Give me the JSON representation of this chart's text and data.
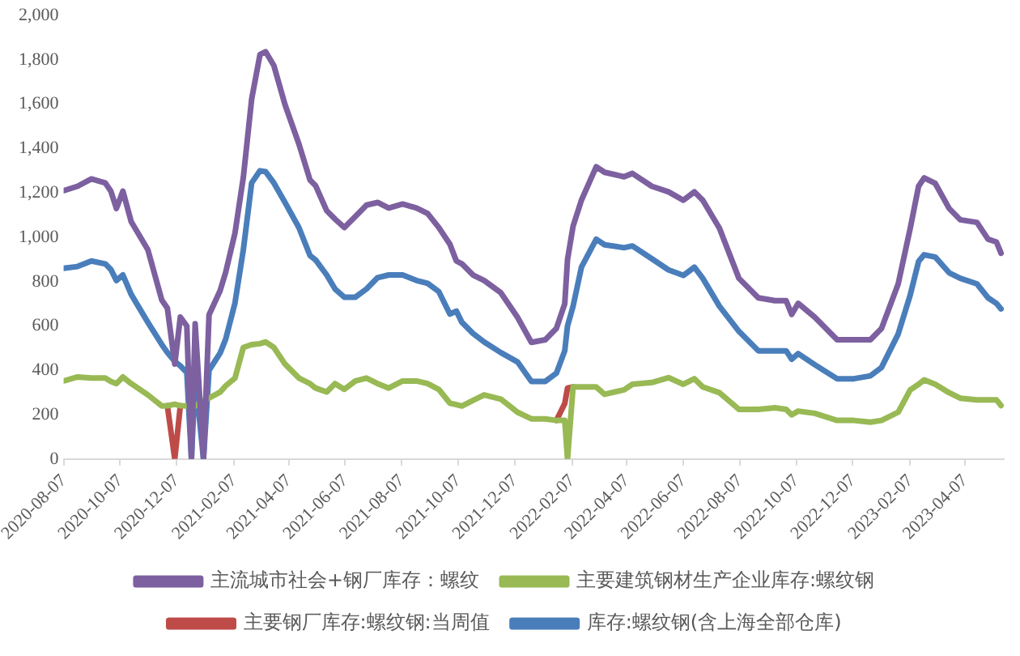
{
  "chart_data": {
    "type": "line",
    "x": [
      "2020-08-07",
      "2020-08-22",
      "2020-09-06",
      "2020-09-21",
      "2020-09-27",
      "2020-10-03",
      "2020-10-10",
      "2020-10-19",
      "2020-11-06",
      "2020-11-21",
      "2020-11-27",
      "2020-12-05",
      "2020-12-11",
      "2020-12-18",
      "2020-12-23",
      "2020-12-27",
      "2021-01-05",
      "2021-01-11",
      "2021-01-23",
      "2021-01-29",
      "2021-02-08",
      "2021-02-17",
      "2021-02-26",
      "2021-03-07",
      "2021-03-13",
      "2021-03-22",
      "2021-04-03",
      "2021-04-18",
      "2021-04-30",
      "2021-05-06",
      "2021-05-18",
      "2021-05-27",
      "2021-06-06",
      "2021-06-18",
      "2021-06-30",
      "2021-07-12",
      "2021-07-24",
      "2021-08-08",
      "2021-08-23",
      "2021-09-04",
      "2021-09-16",
      "2021-09-28",
      "2021-10-05",
      "2021-10-11",
      "2021-10-23",
      "2021-11-04",
      "2021-11-22",
      "2021-12-10",
      "2021-12-25",
      "2022-01-09",
      "2022-01-21",
      "2022-01-30",
      "2022-02-02",
      "2022-02-08",
      "2022-02-17",
      "2022-03-05",
      "2022-03-14",
      "2022-04-04",
      "2022-04-13",
      "2022-05-04",
      "2022-05-22",
      "2022-06-07",
      "2022-06-19",
      "2022-06-28",
      "2022-07-16",
      "2022-08-06",
      "2022-08-27",
      "2022-09-14",
      "2022-09-26",
      "2022-10-02",
      "2022-10-09",
      "2022-10-27",
      "2022-11-20",
      "2022-12-08",
      "2022-12-26",
      "2023-01-07",
      "2023-01-25",
      "2023-02-07",
      "2023-02-16",
      "2023-02-22",
      "2023-03-06",
      "2023-03-21",
      "2023-04-02",
      "2023-04-20",
      "2023-05-02",
      "2023-05-11",
      "2023-05-16"
    ],
    "series": [
      {
        "name": "库存:螺纹钢(含上海全部仓库)",
        "color": "#4a7ebb",
        "values": [
          860,
          868,
          893,
          880,
          855,
          805,
          830,
          742,
          616,
          516,
          480,
          440,
          420,
          390,
          0,
          370,
          0,
          400,
          478,
          541,
          704,
          943,
          1245,
          1300,
          1296,
          1245,
          1157,
          1044,
          918,
          898,
          830,
          767,
          730,
          730,
          767,
          818,
          830,
          830,
          805,
          792,
          755,
          654,
          667,
          616,
          566,
          528,
          480,
          438,
          350,
          350,
          387,
          488,
          600,
          689,
          865,
          991,
          966,
          953,
          961,
          903,
          853,
          828,
          865,
          815,
          689,
          576,
          488,
          488,
          488,
          450,
          475,
          425,
          362,
          362,
          375,
          413,
          564,
          740,
          891,
          921,
          911,
          840,
          815,
          790,
          727,
          702,
          677
        ]
      },
      {
        "name": "主要钢厂库存:螺纹钢:当周值",
        "color": "#be4b48",
        "values": [
          null,
          null,
          null,
          null,
          null,
          null,
          null,
          null,
          null,
          null,
          240,
          0,
          240,
          null,
          null,
          null,
          null,
          null,
          null,
          null,
          null,
          null,
          null,
          null,
          null,
          null,
          null,
          null,
          null,
          null,
          null,
          null,
          null,
          null,
          null,
          null,
          null,
          null,
          null,
          null,
          null,
          null,
          null,
          null,
          null,
          null,
          null,
          null,
          null,
          null,
          174,
          250,
          320,
          325,
          null,
          null,
          null,
          null,
          null,
          null,
          null,
          null,
          null,
          null,
          null,
          null,
          null,
          null,
          null,
          null,
          null,
          null,
          null,
          null,
          null,
          null,
          null,
          null,
          null,
          null,
          null,
          null,
          null,
          null,
          null,
          null,
          null
        ]
      },
      {
        "name": "主要建筑钢材生产企业库存:螺纹钢",
        "color": "#98b954",
        "values": [
          352,
          370,
          365,
          365,
          350,
          340,
          370,
          340,
          289,
          239,
          240,
          247,
          240,
          239,
          239,
          239,
          264,
          275,
          302,
          330,
          365,
          503,
          516,
          520,
          528,
          503,
          428,
          365,
          340,
          320,
          302,
          340,
          314,
          352,
          365,
          340,
          320,
          352,
          352,
          340,
          314,
          252,
          245,
          239,
          264,
          289,
          270,
          211,
          181,
          181,
          174,
          174,
          0,
          325,
          325,
          325,
          292,
          312,
          337,
          345,
          367,
          337,
          362,
          325,
          299,
          224,
          224,
          231,
          224,
          199,
          216,
          206,
          174,
          174,
          166,
          174,
          211,
          312,
          337,
          357,
          337,
          299,
          274,
          267,
          267,
          267,
          241
        ]
      },
      {
        "name": "主流城市社会+钢厂库存：螺纹",
        "color": "#7d60a0",
        "values": [
          1210,
          1230,
          1263,
          1245,
          1208,
          1130,
          1208,
          1070,
          943,
          717,
          680,
          428,
          640,
          600,
          0,
          610,
          0,
          650,
          760,
          843,
          1019,
          1270,
          1623,
          1824,
          1837,
          1774,
          1598,
          1421,
          1258,
          1233,
          1120,
          1082,
          1044,
          1094,
          1145,
          1157,
          1132,
          1150,
          1132,
          1107,
          1044,
          969,
          893,
          880,
          830,
          805,
          750,
          639,
          526,
          538,
          589,
          700,
          900,
          1050,
          1167,
          1318,
          1293,
          1273,
          1288,
          1230,
          1205,
          1167,
          1205,
          1167,
          1041,
          815,
          727,
          714,
          714,
          652,
          702,
          639,
          538,
          538,
          538,
          589,
          790,
          1041,
          1230,
          1268,
          1243,
          1130,
          1079,
          1067,
          991,
          979,
          928
        ]
      }
    ],
    "xlim": [
      "2020-08-07",
      "2023-05-19"
    ],
    "xticks": [
      "2020-08-07",
      "2020-10-07",
      "2020-12-07",
      "2021-02-07",
      "2021-04-07",
      "2021-06-07",
      "2021-08-07",
      "2021-10-07",
      "2021-12-07",
      "2022-02-07",
      "2022-04-07",
      "2022-06-07",
      "2022-08-07",
      "2022-10-07",
      "2022-12-07",
      "2023-02-07",
      "2023-04-07"
    ],
    "ylim": [
      0,
      2000
    ],
    "yticks": [
      0,
      200,
      400,
      600,
      800,
      {
        "value": 1000,
        "label": "1,000"
      },
      {
        "value": 1200,
        "label": "1,200"
      },
      {
        "value": 1400,
        "label": "1,400"
      },
      {
        "value": 1600,
        "label": "1,600"
      },
      {
        "value": 1800,
        "label": "1,800"
      },
      {
        "value": 2000,
        "label": "2,000"
      }
    ],
    "grid": false,
    "legend": "bottom",
    "marker": "none",
    "line_style": "solid"
  }
}
